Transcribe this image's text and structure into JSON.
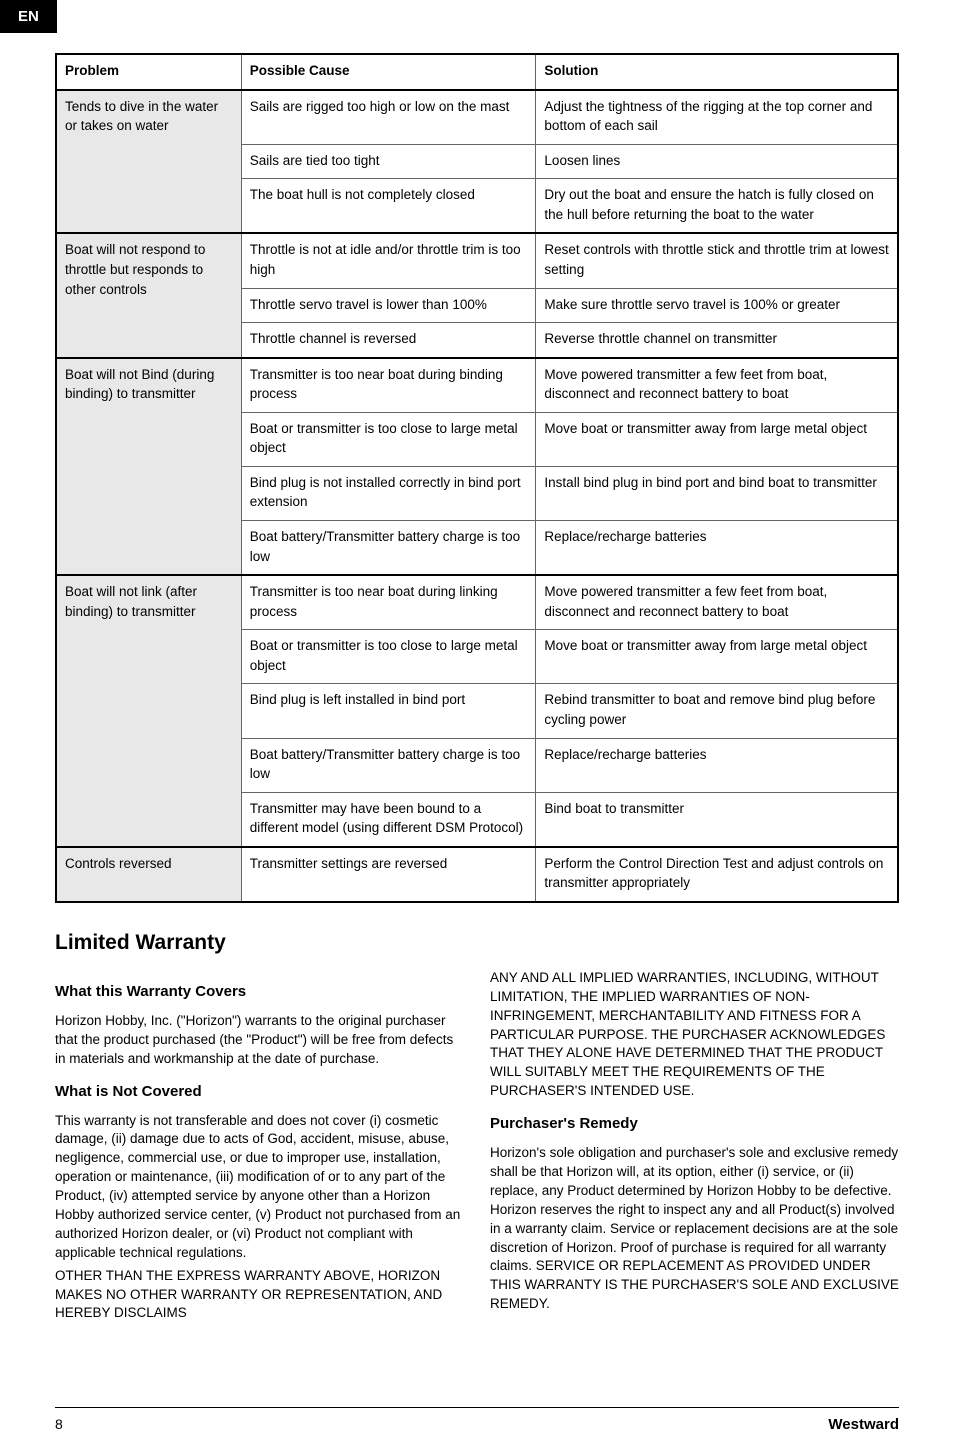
{
  "lang": "EN",
  "table": {
    "headers": [
      "Problem",
      "Possible Cause",
      "Solution"
    ],
    "groups": [
      {
        "problem": "Tends to dive in the water or takes on water",
        "rows": [
          {
            "cause": "Sails are rigged too high or low on the mast",
            "solution": "Adjust the tightness of the rigging at the top corner and bottom of each sail"
          },
          {
            "cause": "Sails are tied too tight",
            "solution": "Loosen lines"
          },
          {
            "cause": "The boat hull is not completely closed",
            "solution": "Dry out the boat and ensure the hatch is fully closed on the hull before returning the boat to the water"
          }
        ]
      },
      {
        "problem": "Boat will not respond to throttle but responds to other controls",
        "rows": [
          {
            "cause": "Throttle is not at idle and/or throttle trim is too high",
            "solution": "Reset controls with throttle stick and throttle trim at lowest setting"
          },
          {
            "cause": "Throttle servo travel is lower than 100%",
            "solution": "Make sure throttle servo travel is 100% or greater"
          },
          {
            "cause": "Throttle channel is reversed",
            "solution": "Reverse throttle channel on transmitter"
          }
        ]
      },
      {
        "problem": "Boat will not Bind (during binding) to transmitter",
        "rows": [
          {
            "cause": "Transmitter is too near boat during binding process",
            "solution": "Move powered transmitter a few feet from boat, disconnect and reconnect battery to boat"
          },
          {
            "cause": "Boat or transmitter is too close to large metal object",
            "solution": "Move boat or transmitter away from large metal object"
          },
          {
            "cause": "Bind plug is not installed correctly in bind port extension",
            "solution": "Install bind plug in bind port and bind boat to transmitter"
          },
          {
            "cause": "Boat battery/Transmitter battery charge is too low",
            "solution": "Replace/recharge batteries"
          }
        ]
      },
      {
        "problem": "Boat will not link (after binding) to transmitter",
        "rows": [
          {
            "cause": "Transmitter is too near boat during linking process",
            "solution": "Move powered transmitter a few feet from boat, disconnect and reconnect battery to boat"
          },
          {
            "cause": "Boat or transmitter is too close to large metal object",
            "solution": "Move boat or transmitter away from large metal object"
          },
          {
            "cause": "Bind plug is left installed in bind port",
            "solution": "Rebind transmitter to boat and remove bind plug before cycling power"
          },
          {
            "cause": "Boat battery/Transmitter battery charge is too low",
            "solution": "Replace/recharge batteries"
          },
          {
            "cause": "Transmitter may have been bound to a different model (using different DSM Protocol)",
            "solution": "Bind boat to transmitter"
          }
        ]
      },
      {
        "problem": "Controls reversed",
        "rows": [
          {
            "cause": "Transmitter settings are reversed",
            "solution": "Perform the Control Direction Test and adjust controls on transmitter appropriately"
          }
        ]
      }
    ]
  },
  "warranty": {
    "title": "Limited Warranty",
    "s1_title": "What this Warranty Covers",
    "s1_body": "Horizon Hobby, Inc. (\"Horizon\") warrants to the original purchaser that the product purchased (the \"Product\") will be free from defects in materials and workmanship at the date of purchase.",
    "s2_title": "What is Not Covered",
    "s2_body1": "This warranty is not transferable and does not cover (i) cosmetic damage, (ii) damage due to acts of God, accident, misuse, abuse, negligence, commercial use, or due to improper use, installation, operation or maintenance, (iii) modification of or to any part of the Product, (iv) attempted service by anyone other than a Horizon Hobby authorized service center, (v) Product not purchased from an authorized Horizon dealer, or (vi) Product not compliant with applicable technical regulations.",
    "s2_body2": "OTHER THAN THE EXPRESS WARRANTY ABOVE, HORIZON MAKES NO OTHER WARRANTY OR REPRESENTATION, AND HEREBY DISCLAIMS",
    "s2_body3": "ANY AND ALL IMPLIED WARRANTIES, INCLUDING, WITHOUT LIMITATION, THE IMPLIED WARRANTIES OF NON-INFRINGEMENT, MERCHANTABILITY AND FITNESS FOR A PARTICULAR PURPOSE. THE PURCHASER ACKNOWLEDGES THAT THEY ALONE HAVE DETERMINED THAT THE PRODUCT WILL SUITABLY MEET THE REQUIREMENTS OF THE PURCHASER'S INTENDED USE.",
    "s3_title": "Purchaser's Remedy",
    "s3_body": "Horizon's sole obligation and purchaser's sole and exclusive remedy shall be that Horizon will, at its option, either (i) service, or (ii) replace, any Product determined by Horizon Hobby to be defective. Horizon reserves the right to inspect any and all Product(s) involved in a warranty claim. Service or replacement decisions are at the sole discretion of Horizon. Proof of purchase is required for all warranty claims.  SERVICE OR REPLACEMENT AS PROVIDED UNDER THIS WARRANTY IS THE PURCHASER'S SOLE AND EXCLUSIVE REMEDY."
  },
  "footer": {
    "page": "8",
    "brand": "Westward"
  }
}
